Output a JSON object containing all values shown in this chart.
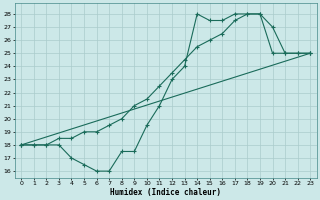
{
  "xlabel": "Humidex (Indice chaleur)",
  "bg_color": "#cce8e8",
  "line_color": "#1a6b5a",
  "grid_color": "#aacccc",
  "xlim": [
    -0.5,
    23.5
  ],
  "ylim": [
    15.5,
    28.8
  ],
  "xticks": [
    0,
    1,
    2,
    3,
    4,
    5,
    6,
    7,
    8,
    9,
    10,
    11,
    12,
    13,
    14,
    15,
    16,
    17,
    18,
    19,
    20,
    21,
    22,
    23
  ],
  "yticks": [
    16,
    17,
    18,
    19,
    20,
    21,
    22,
    23,
    24,
    25,
    26,
    27,
    28
  ],
  "line1_x": [
    0,
    1,
    2,
    3,
    4,
    5,
    6,
    7,
    8,
    9,
    10,
    11,
    12,
    13,
    14,
    15,
    16,
    17,
    18,
    19,
    20,
    21,
    22,
    23
  ],
  "line1_y": [
    18,
    18,
    18,
    18,
    17,
    16.5,
    16,
    16,
    17.5,
    17.5,
    19.5,
    21,
    23,
    24,
    28,
    27.5,
    27.5,
    28,
    28,
    28,
    25,
    25,
    25,
    25
  ],
  "line2_x": [
    0,
    1,
    2,
    3,
    4,
    5,
    6,
    7,
    8,
    9,
    10,
    11,
    12,
    13,
    14,
    15,
    16,
    17,
    18,
    19,
    20,
    21,
    22,
    23
  ],
  "line2_y": [
    18,
    18,
    18,
    18.5,
    18.5,
    19,
    19,
    19.5,
    20,
    21,
    21.5,
    22.5,
    23.5,
    24.5,
    25.5,
    26,
    26.5,
    27.5,
    28,
    28,
    27,
    25,
    25,
    25
  ],
  "line3_x": [
    0,
    23
  ],
  "line3_y": [
    18,
    25
  ]
}
